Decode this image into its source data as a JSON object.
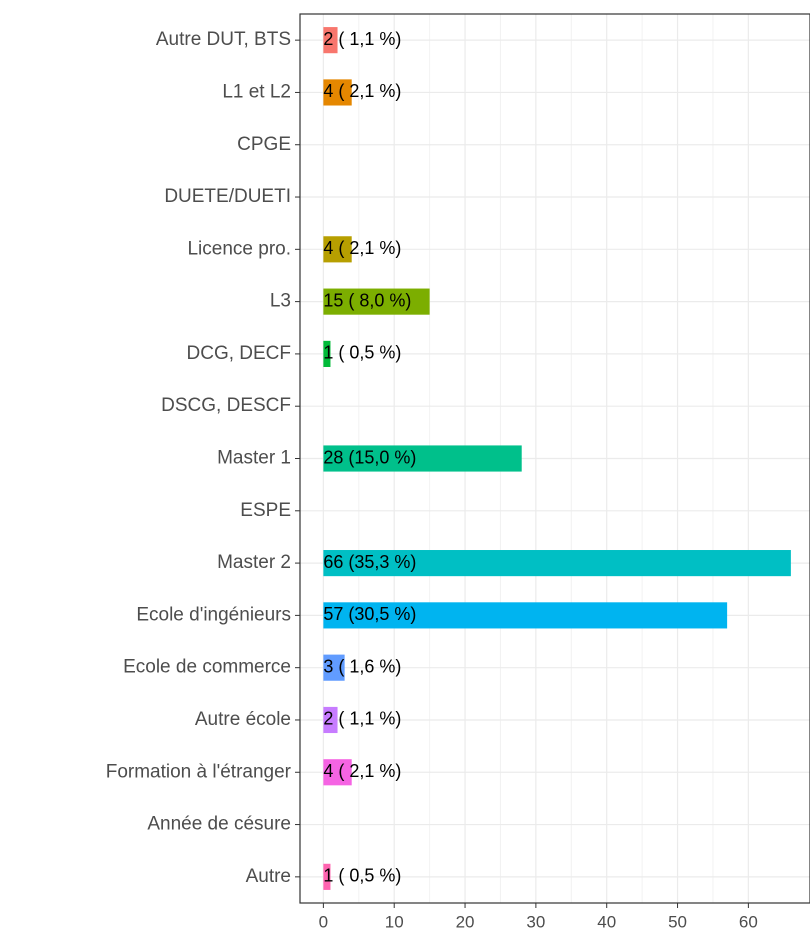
{
  "chart_data": {
    "type": "barh",
    "categories": [
      "Autre DUT, BTS",
      "L1 et L2",
      "CPGE",
      "DUETE/DUETI",
      "Licence pro.",
      "L3",
      "DCG, DECF",
      "DSCG, DESCF",
      "Master 1",
      "ESPE",
      "Master 2",
      "Ecole d'ingénieurs",
      "Ecole de commerce",
      "Autre école",
      "Formation à l'étranger",
      "Année de césure",
      "Autre"
    ],
    "values": [
      2,
      4,
      0,
      0,
      4,
      15,
      1,
      0,
      28,
      0,
      66,
      57,
      3,
      2,
      4,
      0,
      1
    ],
    "value_labels": [
      "2 ( 1,1 %)",
      "4 ( 2,1 %)",
      null,
      null,
      "4 ( 2,1 %)",
      "15 ( 8,0 %)",
      "1 ( 0,5 %)",
      null,
      "28 (15,0 %)",
      null,
      "66 (35,3 %)",
      "57 (30,5 %)",
      "3 ( 1,6 %)",
      "2 ( 1,1 %)",
      "4 ( 2,1 %)",
      null,
      "1 ( 0,5 %)"
    ],
    "colors": [
      "#F8766D",
      "#E58700",
      "#C99800",
      "#B79F00",
      "#B79F00",
      "#7CAE00",
      "#00BA38",
      "#00C08B",
      "#00C08B",
      "#00BFC4",
      "#00BFC4",
      "#00B4F0",
      "#619CFF",
      "#C77CFF",
      "#F564E3",
      "#FF64B0",
      "#FF64B0"
    ],
    "xlim": [
      -3.3,
      68.7
    ],
    "xticks": [
      0,
      10,
      20,
      30,
      40,
      50,
      60
    ],
    "grid": true
  }
}
